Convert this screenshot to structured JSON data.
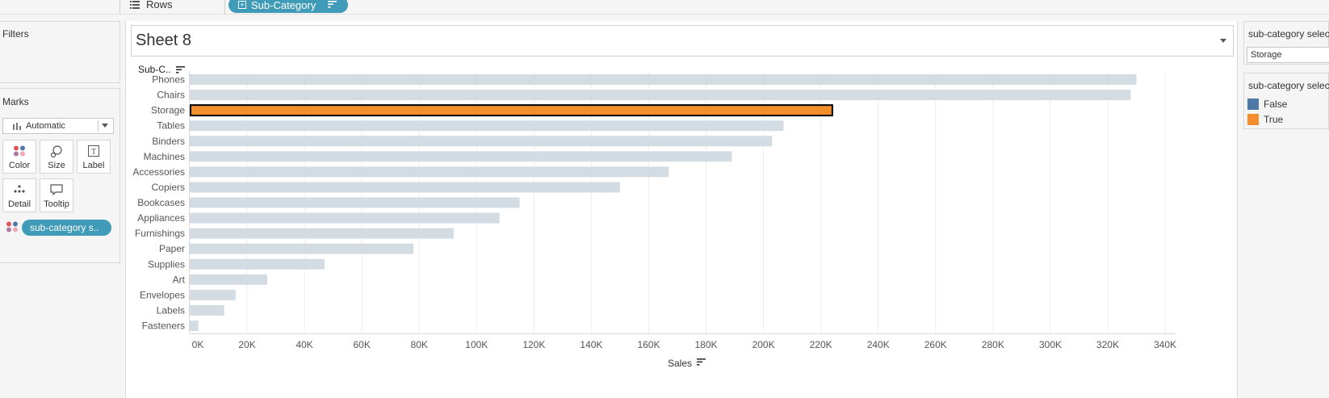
{
  "shelf": {
    "rows_label": "Rows",
    "pill_label": "Sub-Category"
  },
  "filters": {
    "title": "Filters"
  },
  "marks": {
    "title": "Marks",
    "mark_type": "Automatic",
    "buttons": {
      "color": "Color",
      "size": "Size",
      "label": "Label",
      "detail": "Detail",
      "tooltip": "Tooltip"
    },
    "color_pill": "sub-category s.."
  },
  "sheet": {
    "title": "Sheet 8",
    "row_header": "Sub-C.."
  },
  "parameter": {
    "title": "sub-category selec",
    "value": "Storage"
  },
  "legend": {
    "title": "sub-category selec",
    "items": [
      {
        "label": "False",
        "color": "#4e79a7"
      },
      {
        "label": "True",
        "color": "#f28e2b"
      }
    ]
  },
  "colors": {
    "bar_default": "#d4dce3",
    "bar_highlight": "#f28e2b",
    "pill": "#3f9bb7"
  },
  "chart_data": {
    "type": "bar",
    "orientation": "horizontal",
    "categories": [
      "Phones",
      "Chairs",
      "Storage",
      "Tables",
      "Binders",
      "Machines",
      "Accessories",
      "Copiers",
      "Bookcases",
      "Appliances",
      "Furnishings",
      "Paper",
      "Supplies",
      "Art",
      "Envelopes",
      "Labels",
      "Fasteners"
    ],
    "values": [
      330000,
      328000,
      224000,
      207000,
      203000,
      189000,
      167000,
      150000,
      115000,
      108000,
      92000,
      78000,
      47000,
      27000,
      16000,
      12000,
      3000
    ],
    "highlight": "Storage",
    "xlabel": "Sales",
    "ylabel": "Sub-C..",
    "xlim": [
      0,
      340000
    ],
    "ticks": [
      "0K",
      "20K",
      "40K",
      "60K",
      "80K",
      "100K",
      "120K",
      "140K",
      "160K",
      "180K",
      "200K",
      "220K",
      "240K",
      "260K",
      "280K",
      "300K",
      "320K",
      "340K"
    ],
    "tick_values": [
      0,
      20000,
      40000,
      60000,
      80000,
      100000,
      120000,
      140000,
      160000,
      180000,
      200000,
      220000,
      240000,
      260000,
      280000,
      300000,
      320000,
      340000
    ],
    "grid": true
  }
}
